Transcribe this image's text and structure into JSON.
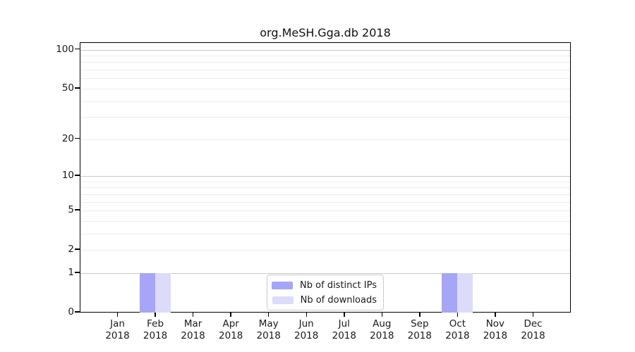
{
  "chart_data": {
    "type": "bar",
    "title": "org.MeSH.Gga.db 2018",
    "categories": [
      "Jan 2018",
      "Feb 2018",
      "Mar 2018",
      "Apr 2018",
      "May 2018",
      "Jun 2018",
      "Jul 2018",
      "Aug 2018",
      "Sep 2018",
      "Oct 2018",
      "Nov 2018",
      "Dec 2018"
    ],
    "series": [
      {
        "name": "Nb of distinct IPs",
        "color": "#a6a5f7",
        "values": [
          0,
          1,
          0,
          0,
          0,
          0,
          0,
          0,
          0,
          1,
          0,
          0
        ]
      },
      {
        "name": "Nb of downloads",
        "color": "#dcdbf9",
        "values": [
          0,
          1,
          0,
          0,
          0,
          0,
          0,
          0,
          0,
          1,
          0,
          0
        ]
      }
    ],
    "xlabel": "",
    "ylabel": "",
    "yscale": "log1p",
    "ylim": [
      0,
      113
    ],
    "y_tick_labels": [
      0,
      1,
      2,
      5,
      10,
      20,
      50,
      100
    ],
    "y_major_gridlines": [
      1,
      10,
      100
    ],
    "y_minor_gridlines": [
      2,
      3,
      4,
      5,
      6,
      7,
      8,
      9,
      20,
      30,
      40,
      50,
      60,
      70,
      80,
      90
    ],
    "grid": true,
    "legend_position": "bottom-center"
  }
}
